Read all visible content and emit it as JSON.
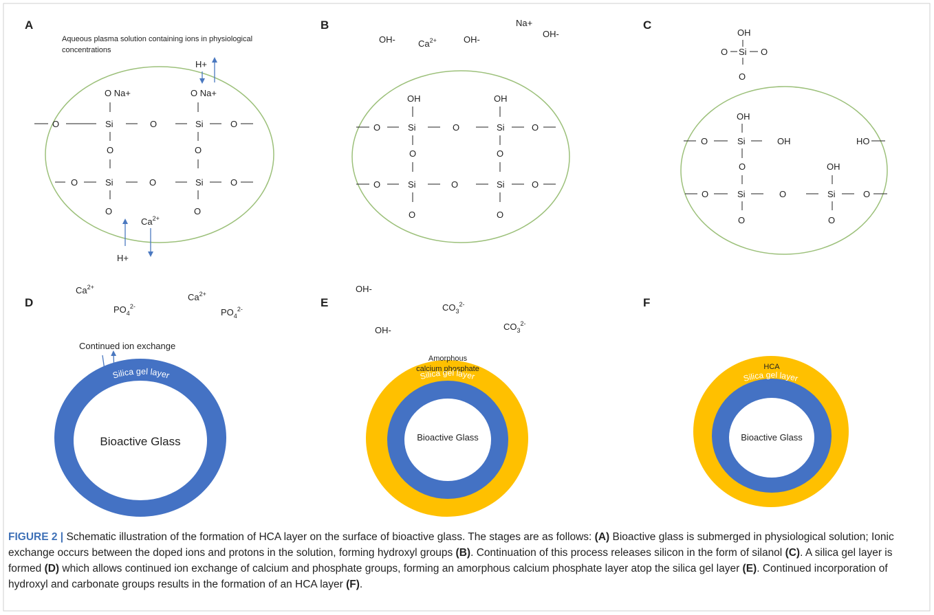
{
  "colors": {
    "outline": "#9cc07a",
    "silica_blue": "#4472c4",
    "acp_yellow": "#ffc000",
    "arrow_blue": "#4a78c0",
    "frame": "#cfcfcf",
    "caption_accent": "#3f71b7"
  },
  "panels": {
    "A": {
      "letter": "A",
      "note_line1": "Aqueous plasma solution containing ions in physiological",
      "note_line2": "concentrations",
      "atoms": {
        "ona1": "O Na+",
        "ona2": "O Na+",
        "o_l1": "O",
        "si1": "Si",
        "o_m1": "O",
        "si2": "Si",
        "o_r1": "O",
        "o_v1": "O",
        "o_v2": "O",
        "o_l2": "O",
        "si3": "Si",
        "o_m2": "O",
        "si4": "Si",
        "o_r2": "O",
        "o_b1": "O",
        "o_b2": "O"
      },
      "ions": {
        "h_top": "H+",
        "h_bottom": "H+",
        "ca": "Ca",
        "ca_sup": "2+"
      }
    },
    "B": {
      "letter": "B",
      "ions": {
        "oh1": "OH-",
        "ca": "Ca",
        "ca_sup": "2+",
        "oh2": "OH-",
        "na": "Na+",
        "oh3": "OH-"
      },
      "atoms": {
        "oh_t1": "OH",
        "oh_t2": "OH",
        "o_l1": "O",
        "si1": "Si",
        "o_m1": "O",
        "si2": "Si",
        "o_r1": "O",
        "o_v1": "O",
        "o_v2": "O",
        "o_l2": "O",
        "si3": "Si",
        "o_m2": "O",
        "si4": "Si",
        "o_r2": "O",
        "o_b1": "O",
        "o_b2": "O"
      }
    },
    "C": {
      "letter": "C",
      "atoms": {
        "f_oh": "OH",
        "f_ol": "O",
        "f_si": "Si",
        "f_or": "O",
        "f_ob": "O",
        "oh1": "OH",
        "o_l1": "O",
        "si1": "Si",
        "oh_r": "OH",
        "ho": "HO",
        "o_v1": "O",
        "oh2": "OH",
        "o_l2": "O",
        "si3": "Si",
        "o_m2": "O",
        "si4": "Si",
        "o_r2": "O",
        "o_b1": "O",
        "o_b2": "O"
      }
    },
    "D": {
      "letter": "D",
      "ions": {
        "ca1": "Ca",
        "ca1_sup": "2+",
        "po1": "PO",
        "po1_sub": "4",
        "po1_sup": "2-",
        "ca2": "Ca",
        "ca2_sup": "2+",
        "po2": "PO",
        "po2_sub": "4",
        "po2_sup": "2-"
      },
      "exchange_label": "Continued ion exchange",
      "silica_label": "Silica gel layer",
      "core_label": "Bioactive Glass"
    },
    "E": {
      "letter": "E",
      "ions": {
        "oh1": "OH-",
        "co1": "CO",
        "co1_sub": "3",
        "co1_sup": "2-",
        "oh2": "OH-",
        "co2": "CO",
        "co2_sub": "3",
        "co2_sup": "2-"
      },
      "acp_line1": "Amorphous",
      "acp_line2": "calcium phosphate",
      "silica_label": "Silica gel layer",
      "core_label": "Bioactive Glass"
    },
    "F": {
      "letter": "F",
      "hca_label": "HCA",
      "silica_label": "Silica gel layer",
      "core_label": "Bioactive Glass"
    }
  },
  "caption": {
    "label": "FIGURE 2 |",
    "t1": " Schematic illustration of the formation of HCA layer on the surface of bioactive glass. The stages are as follows: ",
    "b1": "(A)",
    "t2": " Bioactive glass is submerged in physiological solution; Ionic exchange occurs between the doped ions and protons in the solution, forming hydroxyl groups ",
    "b2": "(B)",
    "t3": ". Continuation of this process releases silicon in the form of silanol ",
    "b3": "(C)",
    "t4": ". A silica gel layer is formed ",
    "b4": "(D)",
    "t5": " which allows continued ion exchange of calcium and phosphate groups, forming an amorphous calcium phosphate layer atop the silica gel layer ",
    "b5": "(E)",
    "t6": ". Continued incorporation of hydroxyl and carbonate groups results in the formation of an HCA layer ",
    "b6": "(F)",
    "t7": "."
  }
}
